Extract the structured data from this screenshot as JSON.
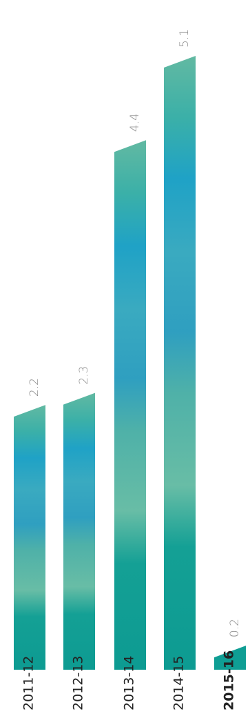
{
  "chart_data": {
    "type": "bar",
    "orientation": "vertical",
    "categories": [
      "2011-12",
      "2012-13",
      "2013-14",
      "2014-15",
      "2015-16"
    ],
    "values": [
      2.2,
      2.3,
      4.4,
      5.1,
      0.2
    ],
    "data_labels": [
      "2.2",
      "2.3",
      "4.4",
      "5.1",
      "0.2"
    ],
    "highlighted_category": "2015-16",
    "ylim": [
      0,
      5.1
    ],
    "grid": false,
    "legend": "none",
    "title": "",
    "xlabel": "",
    "ylabel": "",
    "colors": {
      "teal_dark": "#0f9e94",
      "teal_green": "#5fb7a3",
      "teal_mid": "#3aa9b6",
      "blue": "#2aa1c8",
      "label_gray": "#8a8a8a",
      "label_dark": "#222222"
    }
  }
}
